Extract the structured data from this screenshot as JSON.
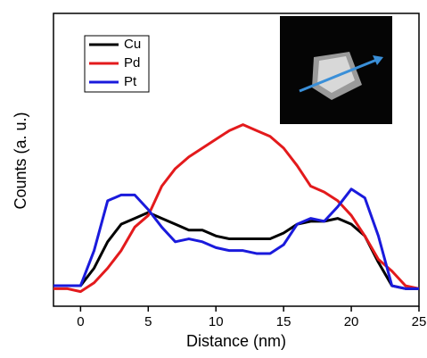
{
  "chart_data": {
    "type": "line",
    "xlabel": "Distance (nm)",
    "ylabel": "Counts (a. u.)",
    "x": [
      -2,
      -1,
      0,
      1,
      2,
      3,
      4,
      5,
      6,
      7,
      8,
      9,
      10,
      11,
      12,
      13,
      14,
      15,
      16,
      17,
      18,
      19,
      20,
      21,
      22,
      23,
      24,
      25
    ],
    "series": [
      {
        "name": "Cu",
        "color": "#000000",
        "values": [
          7,
          7,
          7,
          13,
          22,
          28,
          30,
          32,
          30,
          28,
          26,
          26,
          24,
          23,
          23,
          23,
          23,
          25,
          28,
          29,
          29,
          30,
          28,
          24,
          15,
          7,
          6,
          6
        ]
      },
      {
        "name": "Pd",
        "color": "#e31a1c",
        "values": [
          6,
          6,
          5,
          8,
          13,
          19,
          27,
          31,
          41,
          47,
          51,
          54,
          57,
          60,
          62,
          60,
          58,
          54,
          48,
          41,
          39,
          36,
          31,
          24,
          16,
          12,
          7,
          6
        ]
      },
      {
        "name": "Pt",
        "color": "#1a1adc",
        "values": [
          7,
          7,
          7,
          19,
          36,
          38,
          38,
          33,
          27,
          22,
          23,
          22,
          20,
          19,
          19,
          18,
          18,
          21,
          28,
          30,
          29,
          34,
          40,
          37,
          24,
          7,
          6,
          6
        ]
      }
    ],
    "xlim": [
      -2,
      25
    ],
    "xticks": [
      0,
      5,
      10,
      15,
      20,
      25
    ],
    "ylim": [
      0,
      100
    ]
  }
}
